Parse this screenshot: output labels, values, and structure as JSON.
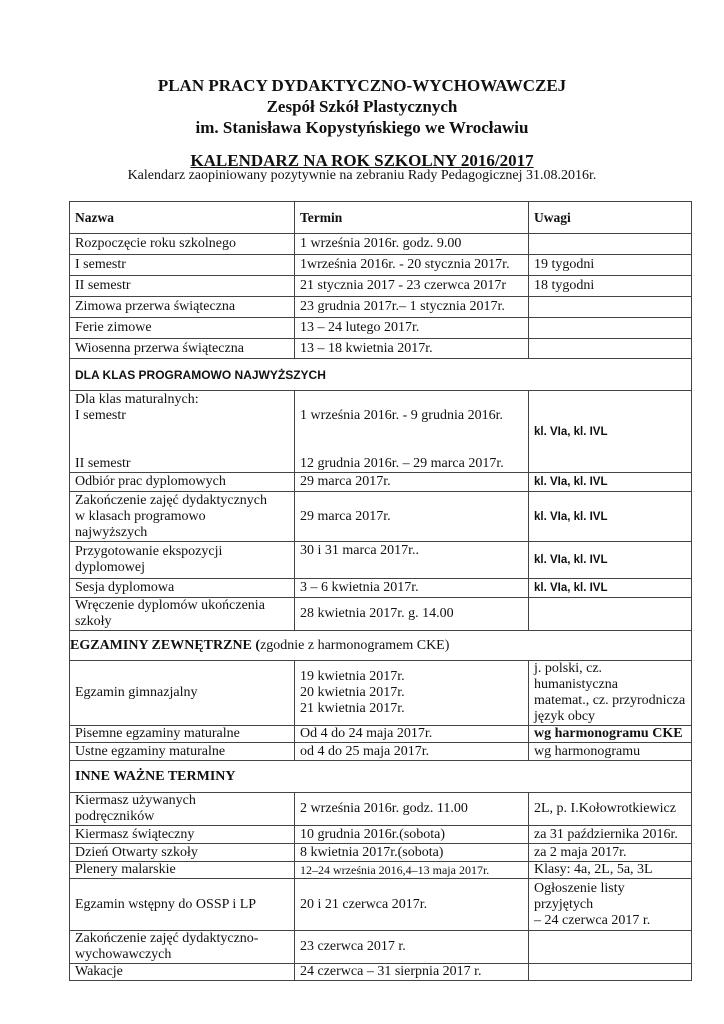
{
  "header": {
    "line1": "PLAN PRACY DYDAKTYCZNO-WYCHOWAWCZEJ",
    "line2": "Zespół Szkół Plastycznych",
    "line3": "im. Stanisława Kopystyńskiego we Wrocławiu",
    "calendar_title": "KALENDARZ  NA ROK SZKOLNY 2016/2017",
    "subtitle": "Kalendarz zaopiniowany pozytywnie na zebraniu Rady Pedagogicznej 31.08.2016r."
  },
  "table": {
    "columns": [
      "Nazwa",
      "Termin",
      "Uwagi"
    ],
    "rows": [
      {
        "name": "Rozpoczęcie roku szkolnego",
        "term": "1 września 2016r. godz. 9.00",
        "notes": ""
      },
      {
        "name": "I semestr",
        "term": "1września 2016r. - 20 stycznia 2017r.",
        "notes": "19 tygodni"
      },
      {
        "name": "II semestr",
        "term": "21 stycznia 2017 - 23 czerwca 2017r",
        "notes": "18 tygodni"
      },
      {
        "name": "Zimowa przerwa świąteczna",
        "term": "23 grudnia 2017r.– 1 stycznia 2017r.",
        "notes": ""
      },
      {
        "name": "Ferie zimowe",
        "term": "13 – 24 lutego 2017r.",
        "notes": ""
      },
      {
        "name": "Wiosenna przerwa świąteczna",
        "term": " 13 – 18 kwietnia 2017r.",
        "notes": ""
      },
      {
        "section": "DLA KLAS PROGRAMOWO NAJWYŻSZYCH"
      },
      {
        "name": "Dla klas maturalnych:\nI semestr\n\n\nII semestr",
        "term": "\n1 września 2016r. - 9 grudnia 2016r.\n\n\n12 grudnia 2016r. – 29 marca 2017r.",
        "notes": "kl. VIa, kl. IVL"
      },
      {
        "name": "Odbiór prac dyplomowych",
        "term": "29 marca 2017r.",
        "notes": "kl. VIa, kl. IVL"
      },
      {
        "name": "Zakończenie zajęć dydaktycznych\nw klasach programowo\nnajwyższych",
        "term": "29 marca 2017r.",
        "notes": "kl. VIa, kl. IVL"
      },
      {
        "name": "Przygotowanie ekspozycji\ndyplomowej",
        "term": "30 i 31 marca 2017r..",
        "notes": "kl. VIa, kl. IVL"
      },
      {
        "name": "Sesja dyplomowa",
        "term": "3 – 6 kwietnia 2017r.",
        "notes": "kl. VIa, kl. IVL"
      },
      {
        "name": "Wręczenie dyplomów ukończenia\nszkoły",
        "term": "28 kwietnia 2017r. g. 14.00",
        "notes": ""
      },
      {
        "section": "EGZAMINY ZEWNĘTRZNE (",
        "section_note": "zgodnie z harmonogramem CKE)"
      },
      {
        "name": "Egzamin gimnazjalny",
        "term": "19 kwietnia 2017r.\n20 kwietnia 2017r.\n21 kwietnia 2017r.",
        "notes": "j. polski, cz. humanistyczna\nmatemat., cz. przyrodnicza\njęzyk obcy"
      },
      {
        "name": "Pisemne egzaminy maturalne",
        "term": "Od 4 do 24 maja 2017r.",
        "notes": "wg harmonogramu CKE"
      },
      {
        "name": "Ustne egzaminy maturalne",
        "term": "od 4 do 25 maja 2017r.",
        "notes": "wg harmonogramu"
      },
      {
        "section": "INNE WAŻNE TERMINY"
      },
      {
        "name": "Kiermasz używanych\npodręczników",
        "term": "2 września 2016r. godz. 11.00",
        "notes": "2L, p. I.Kołowrotkiewicz"
      },
      {
        "name": "Kiermasz świąteczny",
        "term": "10 grudnia 2016r.(sobota)",
        "notes": "za 31 października 2016r."
      },
      {
        "name": "Dzień Otwarty szkoły",
        "term": "8 kwietnia 2017r.(sobota)",
        "notes": "za 2 maja 2017r."
      },
      {
        "name": "Plenery malarskie",
        "term": "12–24 września 2016,4–13 maja 2017r.",
        "notes": "Klasy: 4a, 2L, 5a, 3L"
      },
      {
        "name": "Egzamin wstępny do OSSP i LP",
        "term": "20 i 21 czerwca 2017r.",
        "notes": "Ogłoszenie listy\nprzyjętych\n– 24 czerwca 2017 r."
      },
      {
        "name": "Zakończenie zajęć dydaktyczno-\nwychowawczych",
        "term": "23 czerwca 2017 r.",
        "notes": ""
      },
      {
        "name": "Wakacje",
        "term": "24 czerwca – 31 sierpnia 2017 r.",
        "notes": ""
      }
    ]
  }
}
